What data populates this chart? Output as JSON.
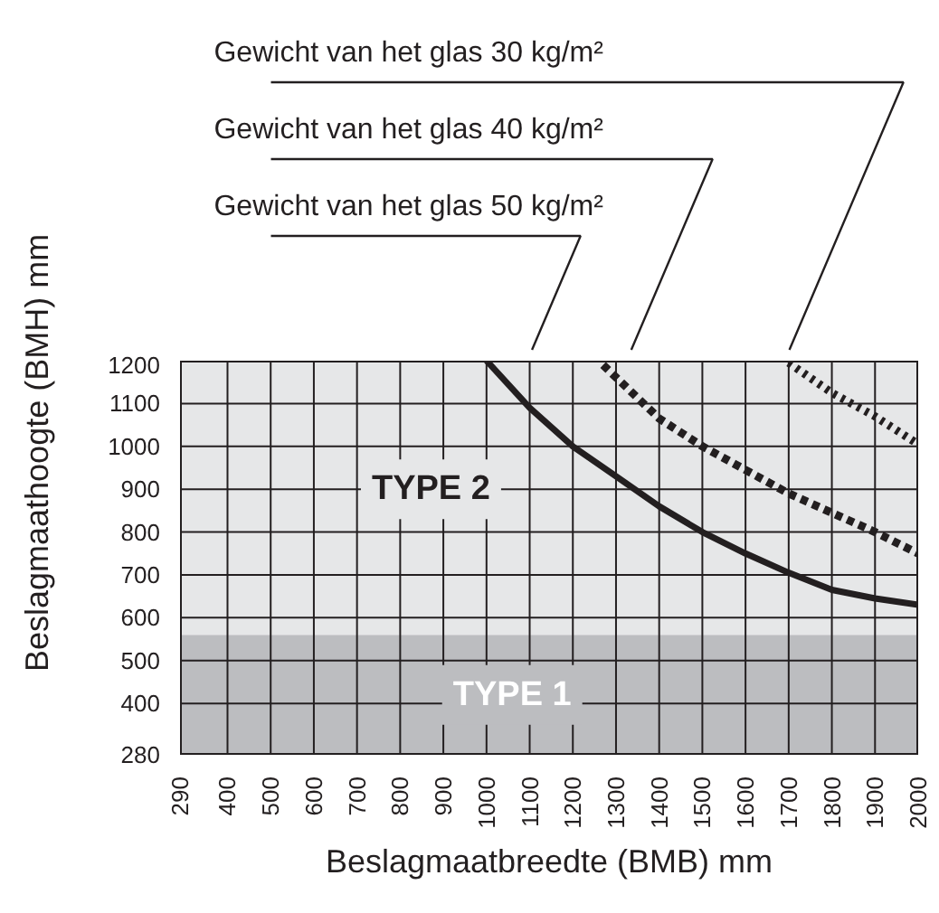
{
  "chart_data": {
    "type": "line",
    "xlabel": "Beslagmaatbreedte (BMB) mm",
    "ylabel": "Beslagmaathoogte (BMH) mm",
    "xlim": [
      290,
      2000
    ],
    "ylim": [
      280,
      1200
    ],
    "xticks": [
      290,
      400,
      500,
      600,
      700,
      800,
      900,
      1000,
      1100,
      1200,
      1300,
      1400,
      1500,
      1600,
      1700,
      1800,
      1900,
      2000
    ],
    "yticks": [
      280,
      400,
      500,
      600,
      700,
      800,
      900,
      1000,
      1100,
      1200
    ],
    "grid": true,
    "bands": [
      {
        "axis": "y",
        "from": 280,
        "to": 560,
        "label": "TYPE 1",
        "color": "#bcbdc0"
      },
      {
        "axis": "y",
        "from": 560,
        "to": 1200,
        "label": "TYPE 2",
        "color": "#e6e7e8"
      }
    ],
    "series": [
      {
        "name": "Gewicht van het glas  30 kg/m²",
        "color": "#231f20",
        "line_style": "dotted",
        "x": [
          1700,
          1800,
          1900,
          2000
        ],
        "values": [
          1195,
          1125,
          1070,
          1005
        ]
      },
      {
        "name": "Gewicht van het glas  40 kg/m²",
        "color": "#231f20",
        "line_style": "dashed",
        "x": [
          1270,
          1400,
          1500,
          1600,
          1700,
          1800,
          1900,
          2000
        ],
        "values": [
          1190,
          1065,
          1000,
          945,
          890,
          845,
          800,
          750
        ]
      },
      {
        "name": "Gewicht van het glas 50 kg/m²",
        "color": "#231f20",
        "line_style": "solid",
        "x": [
          1000,
          1100,
          1200,
          1300,
          1400,
          1500,
          1600,
          1700,
          1800,
          1900,
          2000
        ],
        "values": [
          1200,
          1090,
          1000,
          930,
          860,
          800,
          750,
          705,
          665,
          645,
          630
        ]
      }
    ]
  }
}
